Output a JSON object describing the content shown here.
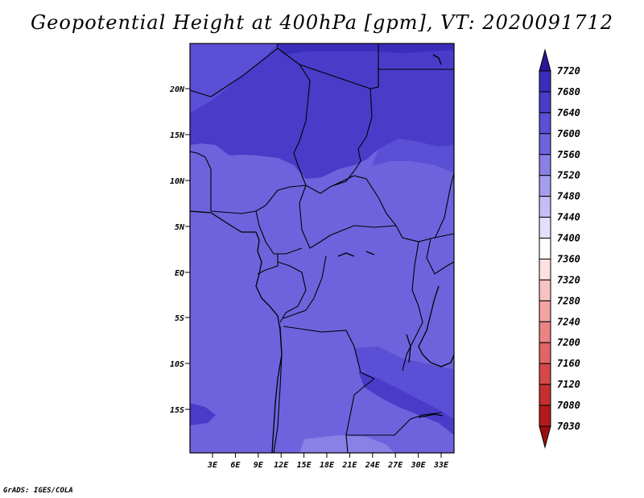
{
  "title": "Geopotential Height at 400hPa [gpm], VT: 2020091712",
  "credit": "GrADS: IGES/COLA",
  "map": {
    "lat_labels": [
      "20N",
      "15N",
      "10N",
      "5N",
      "EQ",
      "5S",
      "10S",
      "15S"
    ],
    "lon_labels": [
      "3E",
      "6E",
      "9E",
      "12E",
      "15E",
      "18E",
      "21E",
      "24E",
      "27E",
      "30E",
      "33E"
    ],
    "fill_colors": {
      "c7520": "#6f63dd",
      "c7560": "#5b4fd5",
      "c7600": "#4a3cc9",
      "c7640": "#3a2dbb"
    }
  },
  "colorbar": {
    "levels": [
      "7720",
      "7680",
      "7640",
      "7600",
      "7560",
      "7520",
      "7480",
      "7440",
      "7400",
      "7360",
      "7320",
      "7280",
      "7240",
      "7200",
      "7160",
      "7120",
      "7080",
      "7030"
    ],
    "colors": [
      "#2a189b",
      "#3a2dbb",
      "#4a3cc9",
      "#5b4fd5",
      "#6f63dd",
      "#8a80e6",
      "#a59eef",
      "#c3bff6",
      "#e2e0fb",
      "#ffffff",
      "#fde0e0",
      "#f9c2c2",
      "#f3a3a3",
      "#ea8383",
      "#e06565",
      "#d44848",
      "#c52f2f",
      "#b31b1b",
      "#9c0f0f"
    ]
  }
}
